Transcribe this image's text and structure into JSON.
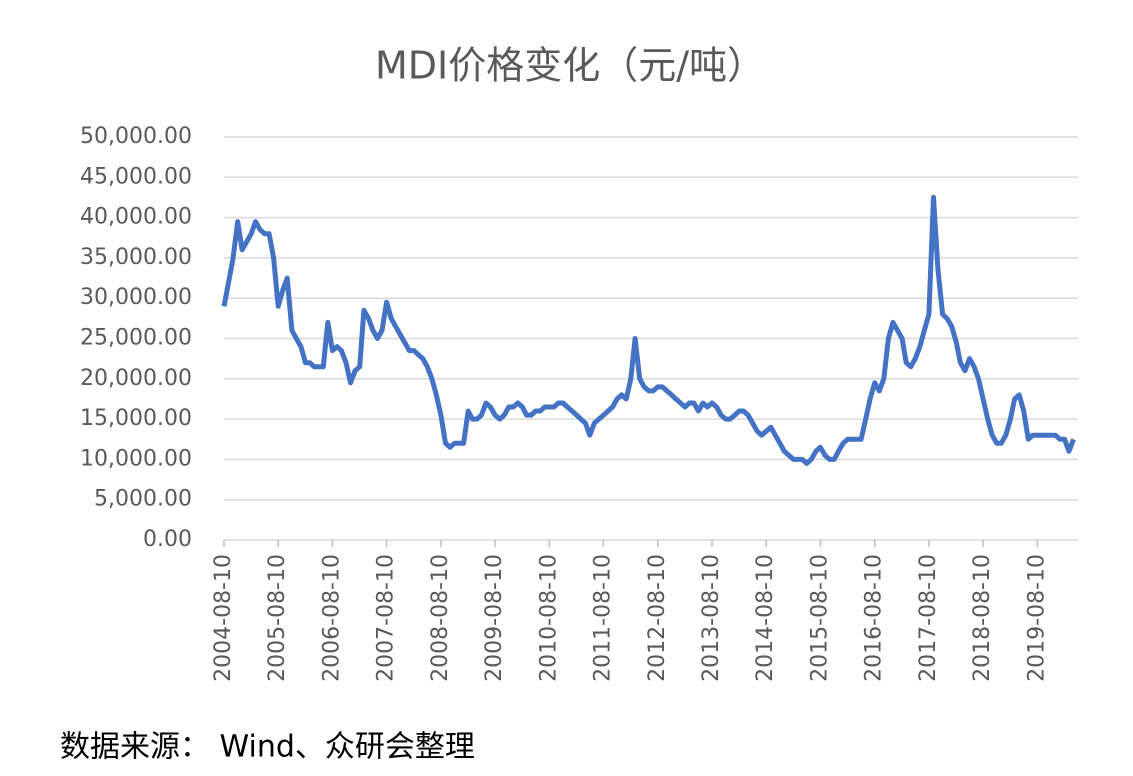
{
  "chart_data": {
    "type": "line",
    "title": "MDI价格变化（元/吨）",
    "source": "数据来源：  Wind、众研会整理",
    "series": [
      {
        "name": "MDI",
        "color": "#4472c4",
        "values": [
          29000,
          32000,
          35000,
          39500,
          36000,
          37000,
          38000,
          39500,
          38500,
          38000,
          38000,
          35000,
          29000,
          31000,
          32500,
          26000,
          25000,
          24000,
          22000,
          22000,
          21500,
          21500,
          21500,
          27000,
          23500,
          24000,
          23500,
          22000,
          19500,
          21000,
          21500,
          28500,
          27500,
          26000,
          25000,
          26000,
          29500,
          27500,
          26500,
          25500,
          24500,
          23500,
          23500,
          23000,
          22500,
          21500,
          20000,
          18000,
          15500,
          12000,
          11500,
          12000,
          12000,
          12000,
          16000,
          15000,
          15000,
          15500,
          17000,
          16500,
          15500,
          15000,
          15500,
          16500,
          16500,
          17000,
          16500,
          15500,
          15500,
          16000,
          16000,
          16500,
          16500,
          16500,
          17000,
          17000,
          16500,
          16000,
          15500,
          15000,
          14500,
          13000,
          14500,
          15000,
          15500,
          16000,
          16500,
          17500,
          18000,
          17500,
          20000,
          25000,
          20000,
          19000,
          18500,
          18500,
          19000,
          19000,
          18500,
          18000,
          17500,
          17000,
          16500,
          17000,
          17000,
          16000,
          17000,
          16500,
          17000,
          16500,
          15500,
          15000,
          15000,
          15500,
          16000,
          16000,
          15500,
          14500,
          13500,
          13000,
          13500,
          14000,
          13000,
          12000,
          11000,
          10500,
          10000,
          10000,
          10000,
          9500,
          10000,
          11000,
          11500,
          10500,
          10000,
          10000,
          11000,
          12000,
          12500,
          12500,
          12500,
          12500,
          15000,
          17500,
          19500,
          18500,
          20000,
          25000,
          27000,
          26000,
          25000,
          22000,
          21500,
          22500,
          24000,
          26000,
          28000,
          42500,
          33500,
          28000,
          27500,
          26500,
          24500,
          22000,
          21000,
          22500,
          21500,
          20000,
          17500,
          15000,
          13000,
          12000,
          12000,
          13000,
          15000,
          17500,
          18000,
          16000,
          12500,
          13000,
          13000,
          13000,
          13000,
          13000,
          13000,
          12500,
          12500,
          11000,
          12500
        ]
      }
    ],
    "x": [
      "2004-08-10",
      "2004-09-10",
      "2004-10-10",
      "2004-11-10",
      "2004-12-10",
      "2005-01-10",
      "2005-02-10",
      "2005-03-10",
      "2005-04-10",
      "2005-05-10",
      "2005-06-10",
      "2005-07-10",
      "2005-08-10",
      "2005-09-10",
      "2005-10-10",
      "2005-11-10",
      "2005-12-10",
      "2006-01-10",
      "2006-02-10",
      "2006-03-10",
      "2006-04-10",
      "2006-05-10",
      "2006-06-10",
      "2006-07-10",
      "2006-08-10",
      "2006-09-10",
      "2006-10-10",
      "2006-11-10",
      "2006-12-10",
      "2007-01-10",
      "2007-02-10",
      "2007-03-10",
      "2007-04-10",
      "2007-05-10",
      "2007-06-10",
      "2007-07-10",
      "2007-08-10",
      "2007-09-10",
      "2007-10-10",
      "2007-11-10",
      "2007-12-10",
      "2008-01-10",
      "2008-02-10",
      "2008-03-10",
      "2008-04-10",
      "2008-05-10",
      "2008-06-10",
      "2008-07-10",
      "2008-08-10",
      "2008-09-10",
      "2008-10-10",
      "2008-11-10",
      "2008-12-10",
      "2009-01-10",
      "2009-02-10",
      "2009-03-10",
      "2009-04-10",
      "2009-05-10",
      "2009-06-10",
      "2009-07-10",
      "2009-08-10",
      "2009-09-10",
      "2009-10-10",
      "2009-11-10",
      "2009-12-10",
      "2010-01-10",
      "2010-02-10",
      "2010-03-10",
      "2010-04-10",
      "2010-05-10",
      "2010-06-10",
      "2010-07-10",
      "2010-08-10",
      "2010-09-10",
      "2010-10-10",
      "2010-11-10",
      "2010-12-10",
      "2011-01-10",
      "2011-02-10",
      "2011-03-10",
      "2011-04-10",
      "2011-05-10",
      "2011-06-10",
      "2011-07-10",
      "2011-08-10",
      "2011-09-10",
      "2011-10-10",
      "2011-11-10",
      "2011-12-10",
      "2012-01-10",
      "2012-02-10",
      "2012-03-10",
      "2012-04-10",
      "2012-05-10",
      "2012-06-10",
      "2012-07-10",
      "2012-08-10",
      "2012-09-10",
      "2012-10-10",
      "2012-11-10",
      "2012-12-10",
      "2013-01-10",
      "2013-02-10",
      "2013-03-10",
      "2013-04-10",
      "2013-05-10",
      "2013-06-10",
      "2013-07-10",
      "2013-08-10",
      "2013-09-10",
      "2013-10-10",
      "2013-11-10",
      "2013-12-10",
      "2014-01-10",
      "2014-02-10",
      "2014-03-10",
      "2014-04-10",
      "2014-05-10",
      "2014-06-10",
      "2014-07-10",
      "2014-08-10",
      "2014-09-10",
      "2014-10-10",
      "2014-11-10",
      "2014-12-10",
      "2015-01-10",
      "2015-02-10",
      "2015-03-10",
      "2015-04-10",
      "2015-05-10",
      "2015-06-10",
      "2015-07-10",
      "2015-08-10",
      "2015-09-10",
      "2015-10-10",
      "2015-11-10",
      "2015-12-10",
      "2016-01-10",
      "2016-02-10",
      "2016-03-10",
      "2016-04-10",
      "2016-05-10",
      "2016-06-10",
      "2016-07-10",
      "2016-08-10",
      "2016-09-10",
      "2016-10-10",
      "2016-11-10",
      "2016-12-10",
      "2017-01-10",
      "2017-02-10",
      "2017-03-10",
      "2017-04-10",
      "2017-05-10",
      "2017-06-10",
      "2017-07-10",
      "2017-08-10",
      "2017-09-10",
      "2017-10-10",
      "2017-11-10",
      "2017-12-10",
      "2018-01-10",
      "2018-02-10",
      "2018-03-10",
      "2018-04-10",
      "2018-05-10",
      "2018-06-10",
      "2018-07-10",
      "2018-08-10",
      "2018-09-10",
      "2018-10-10",
      "2018-11-10",
      "2018-12-10",
      "2019-01-10",
      "2019-02-10",
      "2019-03-10",
      "2019-04-10",
      "2019-05-10",
      "2019-06-10",
      "2019-07-10",
      "2019-08-10",
      "2019-09-10",
      "2019-10-10",
      "2019-11-10",
      "2019-12-10",
      "2020-01-10",
      "2020-02-10",
      "2020-03-10",
      "2020-04-10"
    ],
    "xlim": [
      "2004-08-10",
      "2020-05-10"
    ],
    "xticks": [
      "2004-08-10",
      "2005-08-10",
      "2006-08-10",
      "2007-08-10",
      "2008-08-10",
      "2009-08-10",
      "2010-08-10",
      "2011-08-10",
      "2012-08-10",
      "2013-08-10",
      "2014-08-10",
      "2015-08-10",
      "2016-08-10",
      "2017-08-10",
      "2018-08-10",
      "2019-08-10"
    ],
    "ylim": [
      0,
      50000
    ],
    "yticks": [
      {
        "value": 0,
        "label": "0.00"
      },
      {
        "value": 5000,
        "label": "5,000.00"
      },
      {
        "value": 10000,
        "label": "10,000.00"
      },
      {
        "value": 15000,
        "label": "15,000.00"
      },
      {
        "value": 20000,
        "label": "20,000.00"
      },
      {
        "value": 25000,
        "label": "25,000.00"
      },
      {
        "value": 30000,
        "label": "30,000.00"
      },
      {
        "value": 35000,
        "label": "35,000.00"
      },
      {
        "value": 40000,
        "label": "40,000.00"
      },
      {
        "value": 45000,
        "label": "45,000.00"
      },
      {
        "value": 50000,
        "label": "50,000.00"
      }
    ],
    "grid": true
  }
}
